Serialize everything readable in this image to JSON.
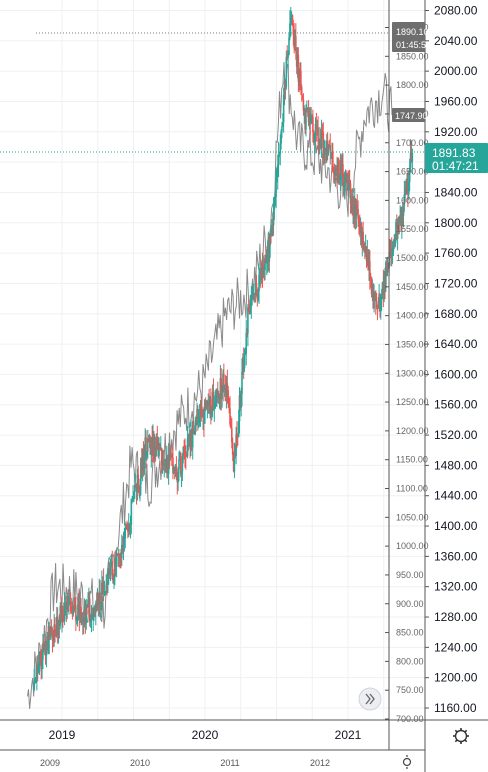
{
  "chart_data": [
    {
      "type": "candlestick",
      "instrument_role": "primary",
      "y_axis_side": "right",
      "yticks": [
        1160,
        1200,
        1240,
        1280,
        1320,
        1360,
        1400,
        1440,
        1480,
        1520,
        1560,
        1600,
        1640,
        1680,
        1720,
        1760,
        1800,
        1840,
        1880,
        1920,
        1960,
        2000,
        2040,
        2080
      ],
      "ylim": [
        1140,
        2090
      ],
      "x_labels": [
        "2019",
        "2020",
        "2021"
      ],
      "price_label": {
        "value": "1891.83",
        "countdown": "01:47:21",
        "color": "#26a69a"
      },
      "up_color": "#26a69a",
      "down_color": "#ef5350",
      "series_approx": [
        {
          "x": "2018.80",
          "close": 1200
        },
        {
          "x": "2019.00",
          "close": 1285
        },
        {
          "x": "2019.20",
          "close": 1290
        },
        {
          "x": "2019.40",
          "close": 1355
        },
        {
          "x": "2019.60",
          "close": 1515
        },
        {
          "x": "2019.80",
          "close": 1470
        },
        {
          "x": "2019.95",
          "close": 1540
        },
        {
          "x": "2020.15",
          "close": 1590
        },
        {
          "x": "2020.20",
          "close": 1470
        },
        {
          "x": "2020.30",
          "close": 1680
        },
        {
          "x": "2020.45",
          "close": 1760
        },
        {
          "x": "2020.55",
          "close": 1960
        },
        {
          "x": "2020.60",
          "close": 2070
        },
        {
          "x": "2020.70",
          "close": 1940
        },
        {
          "x": "2020.90",
          "close": 1880
        },
        {
          "x": "2021.00",
          "close": 1850
        },
        {
          "x": "2021.10",
          "close": 1780
        },
        {
          "x": "2021.20",
          "close": 1680
        },
        {
          "x": "2021.30",
          "close": 1760
        },
        {
          "x": "2021.40",
          "close": 1830
        },
        {
          "x": "2021.45",
          "close": 1892
        }
      ]
    },
    {
      "type": "line",
      "instrument_role": "comparison",
      "y_axis_side": "inner-right",
      "yticks": [
        700,
        750,
        800,
        850,
        900,
        950,
        1000,
        1050,
        1100,
        1150,
        1200,
        1250,
        1300,
        1350,
        1400,
        1450,
        1500,
        1550,
        1600,
        1650,
        1700,
        1750,
        1800,
        1850,
        1900
      ],
      "ylim": [
        700,
        1900
      ],
      "x_labels": [
        "2009",
        "2010",
        "2011",
        "2012"
      ],
      "price_label": {
        "value": "1747.90",
        "color": "#666666"
      },
      "color": "#8a8a8a",
      "series_approx": [
        {
          "x": "2008.75",
          "close": 740
        },
        {
          "x": "2008.90",
          "close": 820
        },
        {
          "x": "2009.05",
          "close": 930
        },
        {
          "x": "2009.30",
          "close": 920
        },
        {
          "x": "2009.60",
          "close": 890
        },
        {
          "x": "2009.90",
          "close": 1140
        },
        {
          "x": "2010.10",
          "close": 1110
        },
        {
          "x": "2010.40",
          "close": 1210
        },
        {
          "x": "2010.70",
          "close": 1280
        },
        {
          "x": "2010.95",
          "close": 1400
        },
        {
          "x": "2011.25",
          "close": 1450
        },
        {
          "x": "2011.45",
          "close": 1560
        },
        {
          "x": "2011.60",
          "close": 1850
        },
        {
          "x": "2011.75",
          "close": 1700
        },
        {
          "x": "2011.90",
          "close": 1680
        },
        {
          "x": "2012.10",
          "close": 1650
        },
        {
          "x": "2012.30",
          "close": 1600
        },
        {
          "x": "2012.50",
          "close": 1750
        },
        {
          "x": "2012.70",
          "close": 1790
        },
        {
          "x": "2012.80",
          "close": 1748
        }
      ]
    }
  ],
  "labels": {
    "comparison_high_value": "1890.10",
    "comparison_high_time": "01:45:53",
    "scroll_icon": "double-chevron-right-icon",
    "settings_icon": "gear-icon"
  }
}
